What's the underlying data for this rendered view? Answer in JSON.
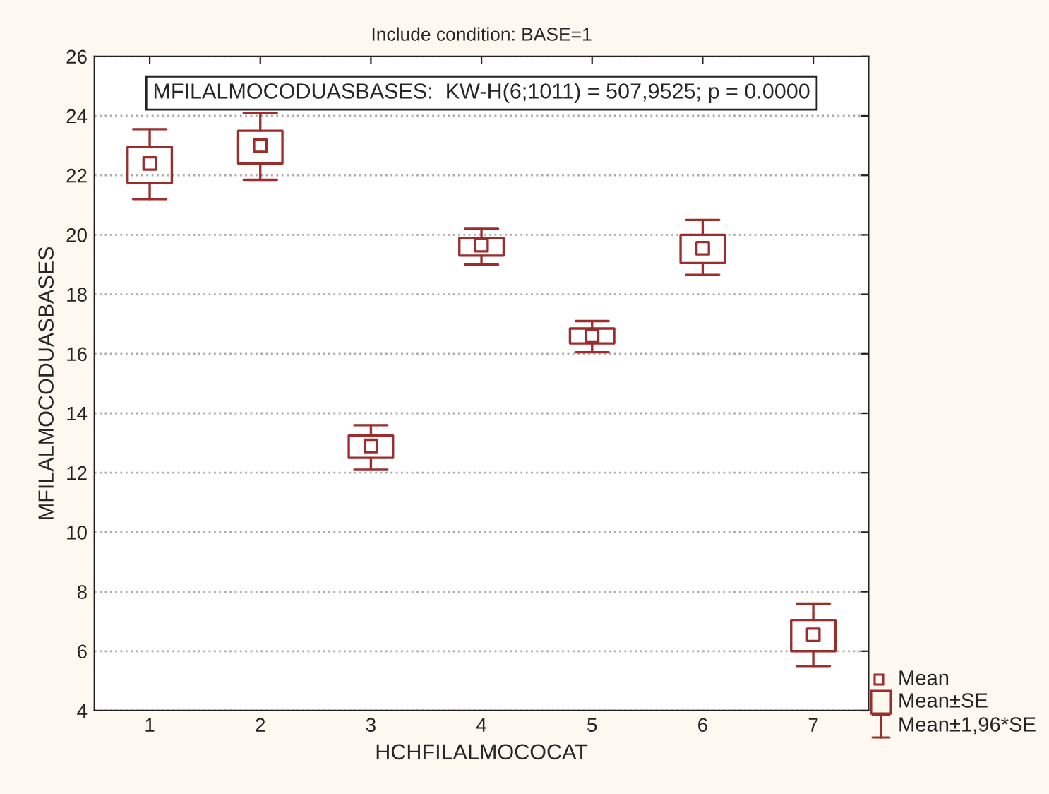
{
  "chart_data": {
    "type": "box",
    "title": "Include condition: BASE=1",
    "xlabel": "HCHFILALMOCOCAT",
    "ylabel": "MFILALMOCODUASBASES",
    "annotations": [
      "MFILALMOCODUASBASES:  KW-H(6;1011) = 507,9525; p = 0.0000",
      "Mean",
      "Mean±SE",
      "Mean±1,96*SE"
    ],
    "categories": [
      "1",
      "2",
      "3",
      "4",
      "5",
      "6",
      "7"
    ],
    "color": "#9b2d2d",
    "boxes": [
      {
        "low": 21.2,
        "q1": 21.75,
        "median": 22.4,
        "q3": 22.95,
        "high": 23.55
      },
      {
        "low": 21.85,
        "q1": 22.4,
        "median": 23.0,
        "q3": 23.5,
        "high": 24.1
      },
      {
        "low": 12.1,
        "q1": 12.5,
        "median": 12.9,
        "q3": 13.25,
        "high": 13.6
      },
      {
        "low": 19.0,
        "q1": 19.3,
        "median": 19.65,
        "q3": 19.9,
        "high": 20.2
      },
      {
        "low": 16.05,
        "q1": 16.35,
        "median": 16.6,
        "q3": 16.85,
        "high": 17.1
      },
      {
        "low": 18.65,
        "q1": 19.05,
        "median": 19.55,
        "q3": 20.0,
        "high": 20.5
      },
      {
        "low": 5.5,
        "q1": 6.0,
        "median": 6.55,
        "q3": 7.05,
        "high": 7.6
      }
    ],
    "ylim": [
      4,
      26
    ],
    "yticks": [
      4,
      6,
      8,
      10,
      12,
      14,
      16,
      18,
      20,
      22,
      24,
      26
    ],
    "grid": "y"
  }
}
